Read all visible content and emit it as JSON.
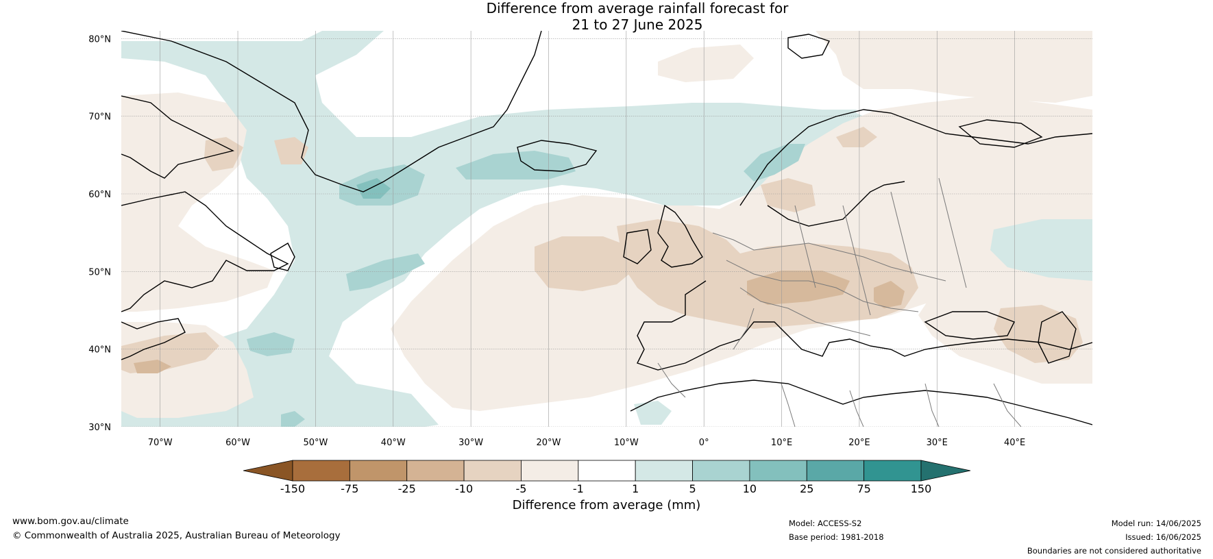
{
  "title": {
    "line1": "Difference from average rainfall forecast for",
    "line2": "21 to 27 June 2025"
  },
  "map": {
    "lat_labels": [
      "30°N",
      "40°N",
      "50°N",
      "60°N",
      "70°N",
      "80°N"
    ],
    "lon_labels": [
      "70°W",
      "60°W",
      "50°W",
      "40°W",
      "30°W",
      "20°W",
      "10°W",
      "0°",
      "10°E",
      "20°E",
      "30°E",
      "40°E"
    ],
    "colors": {
      "brown_light": "#f4ede6",
      "brown_mid": "#e6d3c1",
      "brown_dark": "#d6b99c",
      "teal_light": "#d4e8e6",
      "teal_mid": "#a9d3d1",
      "teal_dark": "#83c0bd",
      "coast": "#000000",
      "border": "#7a7a7a",
      "grid": "#9a9a9a"
    }
  },
  "colorbar": {
    "ticks": [
      "-150",
      "-75",
      "-25",
      "-10",
      "-5",
      "-1",
      "1",
      "5",
      "10",
      "25",
      "75",
      "150"
    ],
    "colors": [
      "#8a5525",
      "#a86e3c",
      "#c0956a",
      "#d4b394",
      "#e6d3c1",
      "#f4ede6",
      "#ffffff",
      "#d4e8e6",
      "#a9d3d1",
      "#83c0bd",
      "#5aa8a7",
      "#319491",
      "#24716f"
    ],
    "label": "Difference from average (mm)"
  },
  "footer": {
    "website": "www.bom.gov.au/climate",
    "copyright": "© Commonwealth of Australia 2025, Australian Bureau of Meteorology",
    "model": "Model: ACCESS-S2",
    "base_period": "Base period: 1981-2018",
    "model_run": "Model run: 14/06/2025",
    "issued": "Issued: 16/06/2025",
    "disclaimer": "Boundaries are not considered authoritative"
  }
}
